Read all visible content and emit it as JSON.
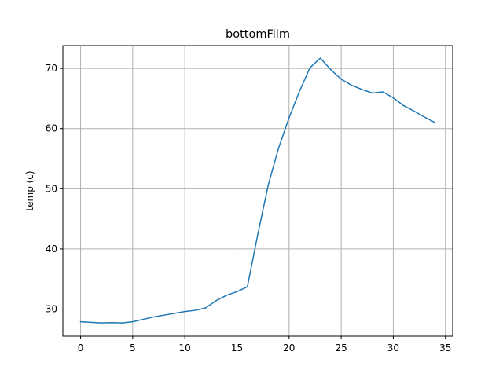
{
  "chart_data": {
    "type": "line",
    "title": "bottomFilm",
    "xlabel": "",
    "ylabel": "temp (c)",
    "xlim": [
      -1.7,
      35.7
    ],
    "ylim": [
      25.5,
      73.8
    ],
    "x_ticks": [
      0,
      5,
      10,
      15,
      20,
      25,
      30,
      35
    ],
    "y_ticks": [
      30,
      40,
      50,
      60,
      70
    ],
    "grid": true,
    "series": [
      {
        "color": "#1f77b4",
        "x": [
          0,
          1,
          2,
          3,
          4,
          5,
          6,
          7,
          8,
          9,
          10,
          11,
          12,
          13,
          14,
          15,
          16,
          17,
          18,
          19,
          20,
          21,
          22,
          23,
          24,
          25,
          26,
          27,
          28,
          29,
          30,
          31,
          32,
          33,
          34
        ],
        "values": [
          27.9,
          27.8,
          27.7,
          27.75,
          27.7,
          27.9,
          28.3,
          28.7,
          29.0,
          29.3,
          29.6,
          29.8,
          30.2,
          31.4,
          32.3,
          32.9,
          33.7,
          42.4,
          50.6,
          56.8,
          61.8,
          66.2,
          70.1,
          71.7,
          69.8,
          68.2,
          67.2,
          66.5,
          65.9,
          66.1,
          65.1,
          63.8,
          62.9,
          61.9,
          61.0
        ]
      }
    ]
  }
}
